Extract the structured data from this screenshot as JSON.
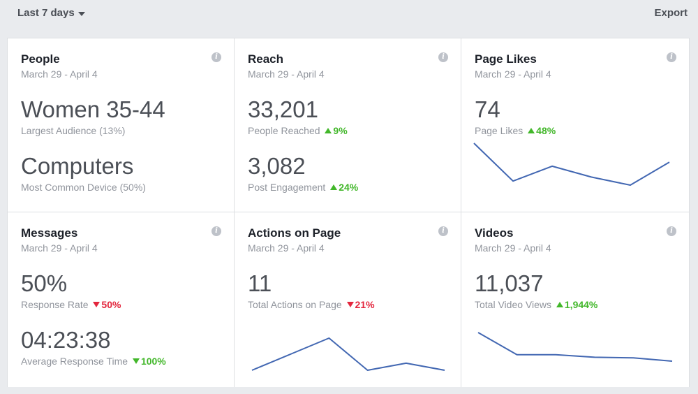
{
  "toolbar": {
    "range_label": "Last 7 days",
    "export_label": "Export"
  },
  "cards": {
    "people": {
      "title": "People",
      "date": "March 29 - April 4",
      "metric1": {
        "value": "Women 35-44",
        "label": "Largest Audience (13%)"
      },
      "metric2": {
        "value": "Computers",
        "label": "Most Common Device (50%)"
      }
    },
    "reach": {
      "title": "Reach",
      "date": "March 29 - April 4",
      "metric1": {
        "value": "33,201",
        "label": "People Reached",
        "change": "9%",
        "direction": "up"
      },
      "metric2": {
        "value": "3,082",
        "label": "Post Engagement",
        "change": "24%",
        "direction": "up"
      }
    },
    "page_likes": {
      "title": "Page Likes",
      "date": "March 29 - April 4",
      "metric1": {
        "value": "74",
        "label": "Page Likes",
        "change": "48%",
        "direction": "up"
      },
      "sparkline": [
        7.5,
        4.7,
        5.8,
        5.0,
        4.4,
        6.1
      ]
    },
    "messages": {
      "title": "Messages",
      "date": "March 29 - April 4",
      "metric1": {
        "value": "50%",
        "label": "Response Rate",
        "change": "50%",
        "direction": "down"
      },
      "metric2": {
        "value": "04:23:38",
        "label": "Average Response Time",
        "change": "100%",
        "direction": "down-good"
      }
    },
    "actions": {
      "title": "Actions on Page",
      "date": "March 29 - April 4",
      "metric1": {
        "value": "11",
        "label": "Total Actions on Page",
        "change": "21%",
        "direction": "down"
      },
      "sparkline": [
        1,
        2.6,
        4.2,
        1,
        1.7,
        1
      ]
    },
    "videos": {
      "title": "Videos",
      "date": "March 29 - April 4",
      "metric1": {
        "value": "11,037",
        "label": "Total Video Views",
        "change": "1,944%",
        "direction": "up"
      },
      "sparkline": [
        4.8,
        3.1,
        3.1,
        2.9,
        2.85,
        2.6
      ]
    }
  },
  "colors": {
    "up": "#42b72a",
    "down": "#e3263d",
    "sparkline": "#4267b2"
  },
  "icons": {
    "info": "info-icon",
    "range_caret": "caret-down-icon"
  }
}
